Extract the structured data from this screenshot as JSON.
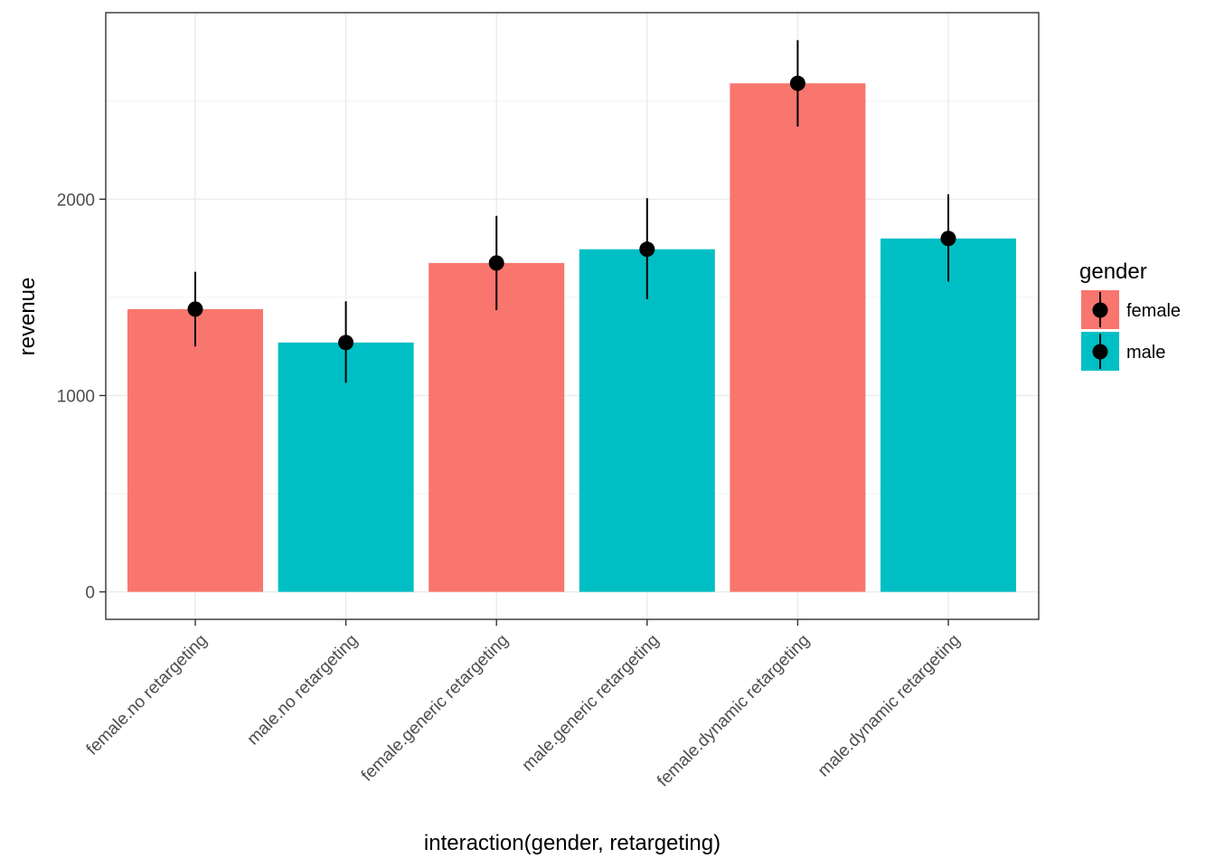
{
  "chart_data": {
    "type": "bar",
    "title": "",
    "xlabel": "interaction(gender, retargeting)",
    "ylabel": "revenue",
    "categories": [
      "female.no retargeting",
      "male.no retargeting",
      "female.generic retargeting",
      "male.generic retargeting",
      "female.dynamic retargeting",
      "male.dynamic retargeting"
    ],
    "values": [
      1440,
      1270,
      1675,
      1745,
      2590,
      1800
    ],
    "error_bars": [
      {
        "low": 1250,
        "high": 1630
      },
      {
        "low": 1065,
        "high": 1480
      },
      {
        "low": 1435,
        "high": 1915
      },
      {
        "low": 1490,
        "high": 2005
      },
      {
        "low": 2370,
        "high": 2810
      },
      {
        "low": 1580,
        "high": 2025
      }
    ],
    "groups": [
      "female",
      "male",
      "female",
      "male",
      "female",
      "male"
    ],
    "ylim": [
      -140,
      2950
    ],
    "yticks": [
      0,
      1000,
      2000
    ],
    "grid": true,
    "legend": {
      "title": "gender",
      "position": "right",
      "entries": [
        {
          "name": "female",
          "color": "#F8766D"
        },
        {
          "name": "male",
          "color": "#00BFC4"
        }
      ]
    }
  }
}
